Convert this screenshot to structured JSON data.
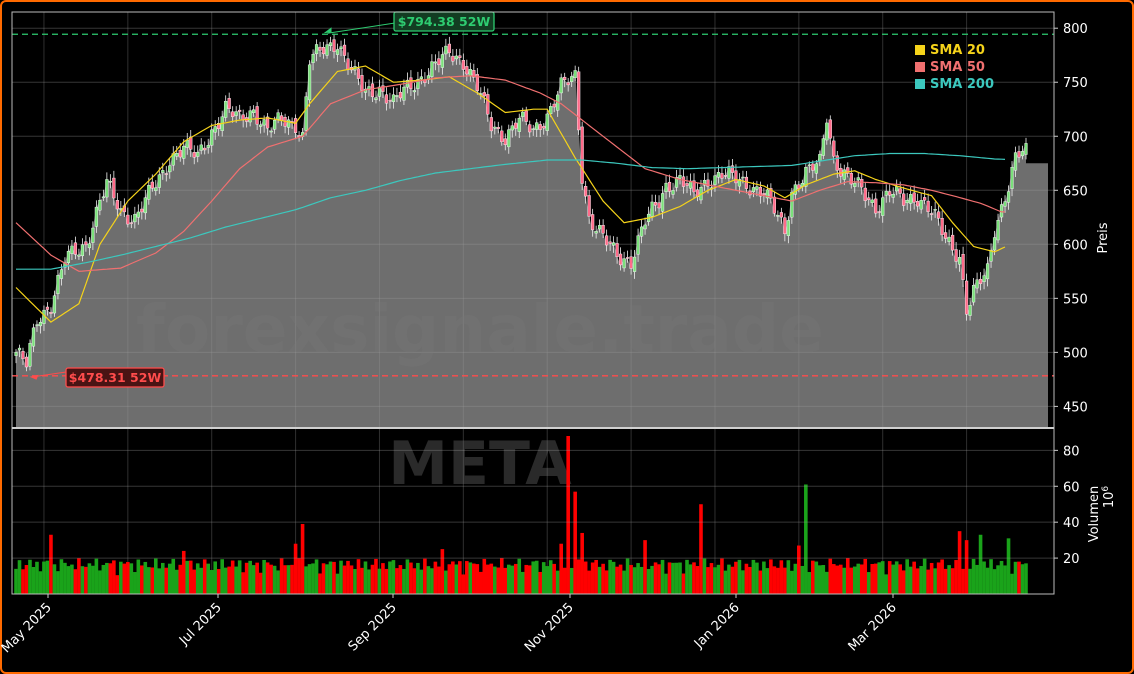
{
  "chart_data": [
    {
      "type": "candlestick",
      "ticker": "META",
      "watermark": "forexsignale.trade",
      "ylabel": "Preis",
      "ylim": [
        430,
        815
      ],
      "yticks": [
        450,
        500,
        550,
        600,
        650,
        700,
        750,
        800
      ],
      "x_dates": [
        "May 2025",
        "Jul 2025",
        "Sep 2025",
        "Nov 2025",
        "Jan 2026",
        "Mar 2026"
      ],
      "high_52w": {
        "value": 794.38,
        "label": "$794.38 52W",
        "color": "#2ecc71"
      },
      "low_52w": {
        "value": 478.31,
        "label": "$478.31 52W",
        "color": "#ff4c4c"
      },
      "last_price": 675,
      "close_path": [
        [
          0,
          500
        ],
        [
          3,
          488
        ],
        [
          6,
          530
        ],
        [
          10,
          545
        ],
        [
          14,
          585
        ],
        [
          20,
          600
        ],
        [
          24,
          640
        ],
        [
          26,
          655
        ],
        [
          30,
          630
        ],
        [
          34,
          625
        ],
        [
          38,
          645
        ],
        [
          42,
          665
        ],
        [
          44,
          680
        ],
        [
          48,
          690
        ],
        [
          52,
          680
        ],
        [
          56,
          705
        ],
        [
          60,
          725
        ],
        [
          64,
          715
        ],
        [
          68,
          725
        ],
        [
          72,
          705
        ],
        [
          76,
          715
        ],
        [
          80,
          712
        ],
        [
          82,
          700
        ],
        [
          84,
          770
        ],
        [
          88,
          780
        ],
        [
          92,
          788
        ],
        [
          96,
          760
        ],
        [
          100,
          740
        ],
        [
          104,
          745
        ],
        [
          108,
          730
        ],
        [
          112,
          745
        ],
        [
          116,
          755
        ],
        [
          120,
          765
        ],
        [
          124,
          778
        ],
        [
          128,
          770
        ],
        [
          132,
          745
        ],
        [
          136,
          710
        ],
        [
          140,
          700
        ],
        [
          144,
          715
        ],
        [
          148,
          705
        ],
        [
          152,
          720
        ],
        [
          156,
          745
        ],
        [
          160,
          755
        ],
        [
          162,
          665
        ],
        [
          164,
          625
        ],
        [
          168,
          605
        ],
        [
          172,
          590
        ],
        [
          176,
          585
        ],
        [
          180,
          620
        ],
        [
          184,
          640
        ],
        [
          186,
          655
        ],
        [
          190,
          660
        ],
        [
          194,
          645
        ],
        [
          198,
          660
        ],
        [
          202,
          665
        ],
        [
          206,
          660
        ],
        [
          210,
          655
        ],
        [
          214,
          648
        ],
        [
          218,
          625
        ],
        [
          220,
          612
        ],
        [
          222,
          650
        ],
        [
          226,
          665
        ],
        [
          230,
          675
        ],
        [
          232,
          720
        ],
        [
          234,
          680
        ],
        [
          238,
          660
        ],
        [
          242,
          650
        ],
        [
          246,
          635
        ],
        [
          250,
          648
        ],
        [
          254,
          640
        ],
        [
          258,
          645
        ],
        [
          262,
          630
        ],
        [
          266,
          605
        ],
        [
          270,
          590
        ],
        [
          272,
          540
        ],
        [
          274,
          555
        ],
        [
          278,
          575
        ],
        [
          280,
          615
        ],
        [
          284,
          655
        ],
        [
          286,
          678
        ],
        [
          288,
          685
        ]
      ],
      "series": [
        {
          "name": "SMA 20",
          "color": "#f5d31a",
          "values": [
            [
              0,
              560
            ],
            [
              10,
              528
            ],
            [
              18,
              545
            ],
            [
              24,
              600
            ],
            [
              32,
              640
            ],
            [
              40,
              665
            ],
            [
              48,
              695
            ],
            [
              56,
              710
            ],
            [
              64,
              715
            ],
            [
              72,
              717
            ],
            [
              80,
              712
            ],
            [
              84,
              730
            ],
            [
              92,
              760
            ],
            [
              100,
              765
            ],
            [
              108,
              750
            ],
            [
              116,
              752
            ],
            [
              124,
              755
            ],
            [
              132,
              740
            ],
            [
              140,
              722
            ],
            [
              148,
              725
            ],
            [
              152,
              725
            ],
            [
              160,
              680
            ],
            [
              168,
              640
            ],
            [
              174,
              620
            ],
            [
              182,
              625
            ],
            [
              190,
              635
            ],
            [
              198,
              650
            ],
            [
              206,
              660
            ],
            [
              214,
              654
            ],
            [
              220,
              643
            ],
            [
              226,
              655
            ],
            [
              234,
              665
            ],
            [
              240,
              668
            ],
            [
              246,
              660
            ],
            [
              254,
              652
            ],
            [
              262,
              645
            ],
            [
              268,
              620
            ],
            [
              274,
              598
            ],
            [
              280,
              593
            ],
            [
              288,
              605
            ]
          ]
        },
        {
          "name": "SMA 50",
          "color": "#f07070",
          "values": [
            [
              0,
              620
            ],
            [
              10,
              590
            ],
            [
              18,
              575
            ],
            [
              30,
              578
            ],
            [
              40,
              592
            ],
            [
              48,
              612
            ],
            [
              56,
              640
            ],
            [
              64,
              670
            ],
            [
              72,
              690
            ],
            [
              82,
              700
            ],
            [
              90,
              730
            ],
            [
              100,
              743
            ],
            [
              110,
              748
            ],
            [
              120,
              754
            ],
            [
              130,
              756
            ],
            [
              140,
              752
            ],
            [
              150,
              740
            ],
            [
              156,
              730
            ],
            [
              164,
              710
            ],
            [
              172,
              690
            ],
            [
              180,
              670
            ],
            [
              190,
              660
            ],
            [
              198,
              655
            ],
            [
              206,
              650
            ],
            [
              214,
              645
            ],
            [
              222,
              640
            ],
            [
              230,
              650
            ],
            [
              238,
              658
            ],
            [
              246,
              657
            ],
            [
              254,
              655
            ],
            [
              262,
              650
            ],
            [
              268,
              645
            ],
            [
              276,
              638
            ],
            [
              282,
              630
            ],
            [
              288,
              630
            ]
          ]
        },
        {
          "name": "SMA 200",
          "color": "#3cc8be",
          "values": [
            [
              0,
              577
            ],
            [
              10,
              577
            ],
            [
              20,
              583
            ],
            [
              30,
              590
            ],
            [
              40,
              598
            ],
            [
              50,
              606
            ],
            [
              60,
              616
            ],
            [
              70,
              624
            ],
            [
              80,
              632
            ],
            [
              90,
              643
            ],
            [
              100,
              650
            ],
            [
              110,
              659
            ],
            [
              120,
              666
            ],
            [
              130,
              670
            ],
            [
              140,
              674
            ],
            [
              152,
              678
            ],
            [
              162,
              678
            ],
            [
              172,
              675
            ],
            [
              182,
              671
            ],
            [
              192,
              670
            ],
            [
              202,
              671
            ],
            [
              212,
              672
            ],
            [
              222,
              673
            ],
            [
              232,
              678
            ],
            [
              240,
              682
            ],
            [
              250,
              684
            ],
            [
              260,
              684
            ],
            [
              270,
              682
            ],
            [
              280,
              679
            ],
            [
              288,
              678
            ]
          ]
        }
      ]
    },
    {
      "type": "bar",
      "ylabel": "Volumen",
      "ylabel_unit": "10",
      "ylabel_exp": "6",
      "ylim": [
        0,
        88
      ],
      "yticks": [
        20,
        40,
        60,
        80
      ],
      "up_color": "#1aa31a",
      "down_color": "#ff0000",
      "spikes": [
        [
          10,
          33,
          "down"
        ],
        [
          48,
          24,
          "down"
        ],
        [
          80,
          28,
          "down"
        ],
        [
          82,
          39,
          "down"
        ],
        [
          122,
          25,
          "down"
        ],
        [
          156,
          28,
          "down"
        ],
        [
          158,
          88,
          "down"
        ],
        [
          160,
          57,
          "down"
        ],
        [
          162,
          34,
          "down"
        ],
        [
          180,
          30,
          "down"
        ],
        [
          196,
          50,
          "down"
        ],
        [
          224,
          27,
          "down"
        ],
        [
          226,
          61,
          "up"
        ],
        [
          270,
          35,
          "down"
        ],
        [
          272,
          30,
          "down"
        ],
        [
          276,
          33,
          "up"
        ],
        [
          284,
          31,
          "up"
        ]
      ]
    }
  ]
}
